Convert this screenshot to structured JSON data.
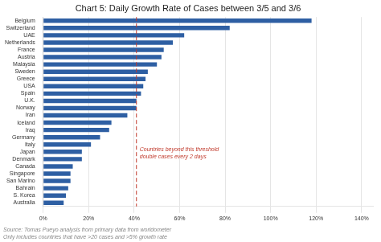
{
  "chart_data": {
    "type": "bar",
    "orientation": "horizontal",
    "title": "Chart 5: Daily Growth Rate of Cases between 3/5 and 3/6",
    "categories": [
      "Belgium",
      "Switzerland",
      "UAE",
      "Netherlands",
      "France",
      "Austria",
      "Malaysia",
      "Sweden",
      "Greece",
      "USA",
      "Spain",
      "U.K.",
      "Norway",
      "Iran",
      "Iceland",
      "Iraq",
      "Germany",
      "Italy",
      "Japan",
      "Denmark",
      "Canada",
      "Singapore",
      "San Marino",
      "Bahrain",
      "S. Korea",
      "Australia"
    ],
    "values": [
      1.18,
      0.82,
      0.62,
      0.57,
      0.53,
      0.52,
      0.5,
      0.46,
      0.45,
      0.44,
      0.43,
      0.41,
      0.41,
      0.37,
      0.3,
      0.29,
      0.25,
      0.21,
      0.17,
      0.17,
      0.13,
      0.12,
      0.12,
      0.11,
      0.1,
      0.09
    ],
    "color": "#2e5fa3",
    "xlim": [
      0,
      1.45
    ],
    "xticks": [
      {
        "value": 0.0,
        "label": "0%"
      },
      {
        "value": 0.2,
        "label": "20%"
      },
      {
        "value": 0.4,
        "label": "40%"
      },
      {
        "value": 0.6,
        "label": "60%"
      },
      {
        "value": 0.8,
        "label": "80%"
      },
      {
        "value": 1.0,
        "label": "100%"
      },
      {
        "value": 1.2,
        "label": "120%"
      },
      {
        "value": 1.4,
        "label": "140%"
      }
    ],
    "grid": true,
    "annotations": [
      {
        "text": "Countries beyond this threshold\ndouble cases every 2 days",
        "x": 0.41,
        "color": "#c0392b",
        "line_style": "dashed"
      }
    ],
    "source": "Source: Tomas Pueyo analysis from primary data from worldometer\nOnly includes countries that have >20 cases and >5% growth rate"
  }
}
